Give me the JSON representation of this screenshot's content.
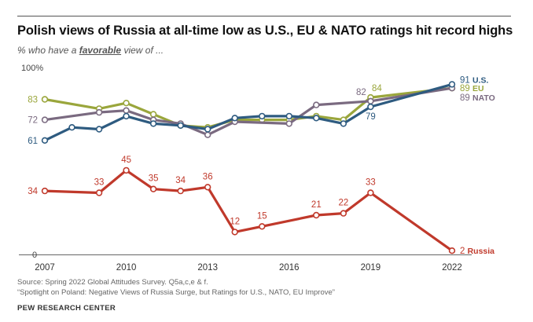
{
  "header": {
    "title": "Polish views of Russia at all-time low as U.S., EU & NATO ratings hit record highs",
    "subtitle_prefix": "% who have a",
    "subtitle_emph": "favorable",
    "subtitle_suffix": "view of ..."
  },
  "chart_data": {
    "type": "line",
    "xticks": [
      "2007",
      "2010",
      "2013",
      "2016",
      "2019",
      "2022"
    ],
    "ytick_labels": [
      "100%",
      "0"
    ],
    "xlim": [
      2007,
      2022
    ],
    "ylim": [
      0,
      100
    ],
    "grid": false,
    "series": [
      {
        "name": "Russia",
        "color": "#c0392b",
        "x": [
          2007,
          2009,
          2010,
          2011,
          2012,
          2013,
          2014,
          2015,
          2017,
          2018,
          2019,
          2022
        ],
        "values": [
          34,
          33,
          45,
          35,
          34,
          36,
          12,
          15,
          21,
          22,
          33,
          2
        ],
        "point_labels": [
          "34",
          "33",
          "45",
          "35",
          "34",
          "36",
          "12",
          "15",
          "21",
          "22",
          "33",
          "2"
        ]
      },
      {
        "name": "EU",
        "color": "#9aa63c",
        "x": [
          2007,
          2009,
          2010,
          2011,
          2012,
          2013,
          2014,
          2015,
          2016,
          2017,
          2018,
          2019,
          2022
        ],
        "values": [
          83,
          78,
          81,
          75,
          69,
          68,
          72,
          72,
          72,
          74,
          72,
          84,
          89
        ],
        "point_labels": [
          "83",
          "",
          "",
          "",
          "",
          "",
          "",
          "",
          "",
          "",
          "",
          "84",
          "89"
        ]
      },
      {
        "name": "NATO",
        "color": "#7a6a80",
        "x": [
          2007,
          2009,
          2010,
          2011,
          2012,
          2013,
          2014,
          2016,
          2017,
          2019,
          2022
        ],
        "values": [
          72,
          76,
          77,
          72,
          70,
          64,
          71,
          70,
          80,
          82,
          89
        ],
        "point_labels": [
          "72",
          "",
          "",
          "",
          "",
          "",
          "",
          "",
          "",
          "82",
          "89"
        ]
      },
      {
        "name": "U.S.",
        "color": "#2e5b80",
        "x": [
          2007,
          2008,
          2009,
          2010,
          2011,
          2012,
          2013,
          2014,
          2015,
          2016,
          2017,
          2018,
          2019,
          2022
        ],
        "values": [
          61,
          68,
          67,
          74,
          70,
          69,
          67,
          73,
          74,
          74,
          73,
          70,
          79,
          91
        ],
        "point_labels": [
          "61",
          "",
          "",
          "",
          "",
          "",
          "",
          "",
          "",
          "",
          "",
          "",
          "79",
          "91"
        ]
      }
    ]
  },
  "footer": {
    "source": "Source: Spring 2022 Global Attitudes Survey. Q5a,c,e & f.",
    "report": "“Spotlight on Poland: Negative Views of Russia Surge, but Ratings for U.S., NATO, EU Improve”",
    "brand": "PEW RESEARCH CENTER"
  }
}
